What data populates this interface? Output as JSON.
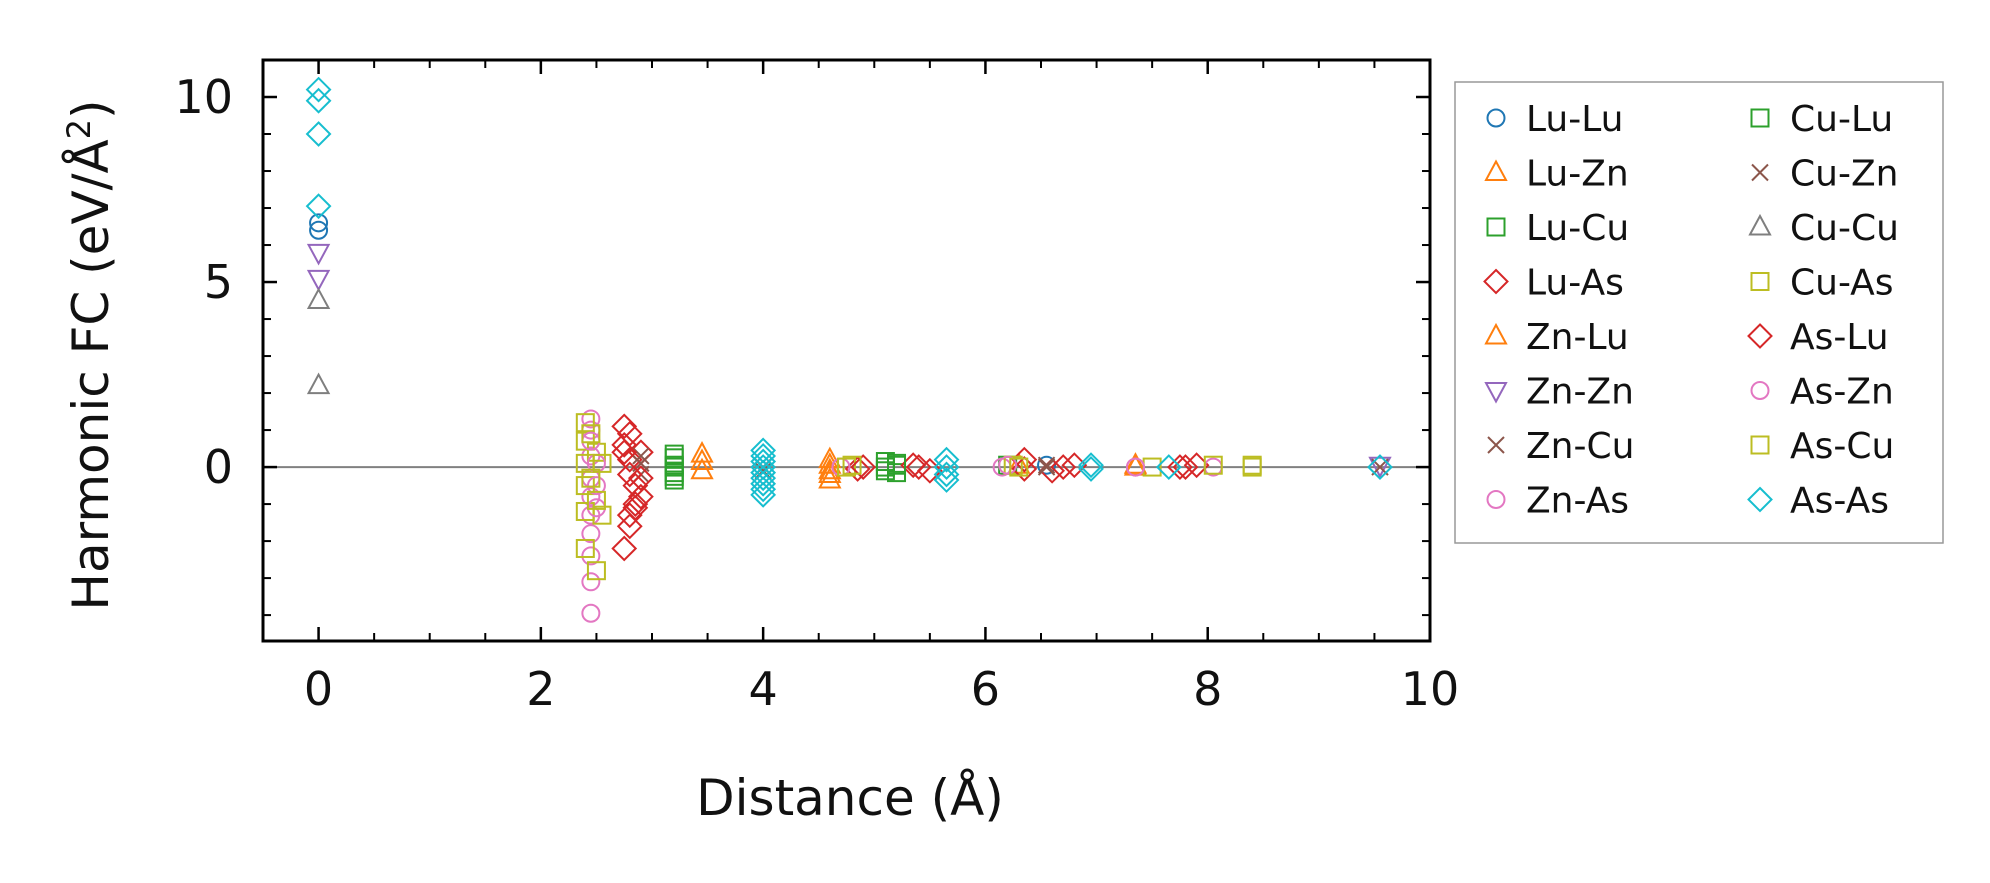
{
  "chart_data": {
    "type": "scatter",
    "xlabel": "Distance (Å)",
    "ylabel": "Harmonic FC (eV/Å²)",
    "ylabel_base": "Harmonic FC (eV/Å",
    "ylabel_sup": "2",
    "ylabel_close": ")",
    "xlim": [
      -0.5,
      10
    ],
    "ylim": [
      -4.7,
      11
    ],
    "xticks": [
      0,
      2,
      4,
      6,
      8,
      10
    ],
    "xtick_labels": [
      "0",
      "2",
      "4",
      "6",
      "8",
      "10"
    ],
    "yticks": [
      0,
      5,
      10
    ],
    "ytick_labels": [
      "0",
      "5",
      "10"
    ],
    "hline": 0,
    "legend_position": "right, outside plot, two columns",
    "series": [
      {
        "name": "Lu-Lu",
        "marker": "circle",
        "color": "#1f77b4",
        "x": [
          0,
          0,
          6.55
        ],
        "y": [
          6.6,
          6.4,
          0.05
        ]
      },
      {
        "name": "Lu-Zn",
        "marker": "triangle-up",
        "color": "#ff7f0e",
        "x": [
          3.45,
          3.45,
          4.6,
          4.6,
          4.6,
          6.3,
          7.35
        ],
        "y": [
          0.35,
          -0.1,
          0.2,
          -0.1,
          -0.35,
          0.05,
          0.0
        ]
      },
      {
        "name": "Lu-Cu",
        "marker": "square",
        "color": "#2ca02c",
        "x": [
          3.2,
          3.2,
          3.2,
          3.2,
          5.1,
          5.1,
          5.2,
          5.2,
          6.2
        ],
        "y": [
          0.25,
          0.05,
          -0.15,
          -0.35,
          0.15,
          -0.1,
          0.1,
          -0.15,
          0.05
        ]
      },
      {
        "name": "Lu-As",
        "marker": "diamond",
        "color": "#d62728",
        "x": [
          2.75,
          2.75,
          2.8,
          2.8,
          2.85,
          2.85,
          2.9,
          2.9,
          2.75,
          2.8,
          4.85,
          5.35,
          5.5,
          6.35,
          6.6,
          6.8,
          7.75,
          7.9
        ],
        "y": [
          1.1,
          0.6,
          0.9,
          0.2,
          -0.5,
          -1.1,
          0.4,
          -0.8,
          -2.2,
          -1.6,
          -0.05,
          0.05,
          -0.1,
          0.2,
          -0.1,
          0.05,
          0.0,
          0.05
        ]
      },
      {
        "name": "Zn-Lu",
        "marker": "triangle-up",
        "color": "#ff7f0e",
        "x": [
          3.45,
          4.6,
          4.6,
          7.35
        ],
        "y": [
          0.15,
          0.05,
          -0.2,
          0.05
        ]
      },
      {
        "name": "Zn-Zn",
        "marker": "triangle-down",
        "color": "#9467bd",
        "x": [
          0,
          0,
          9.55
        ],
        "y": [
          5.8,
          5.1,
          0.05
        ]
      },
      {
        "name": "Zn-Cu",
        "marker": "x",
        "color": "#8c564b",
        "x": [
          2.9,
          2.9,
          4.0,
          6.55,
          9.55
        ],
        "y": [
          0.1,
          -0.2,
          0.0,
          0.05,
          0.0
        ]
      },
      {
        "name": "Zn-As",
        "marker": "circle",
        "color": "#e377c2",
        "x": [
          2.45,
          2.45,
          2.45,
          2.45,
          2.45,
          2.45,
          2.45,
          2.45,
          2.45,
          2.45,
          4.7,
          6.15,
          7.35,
          8.05
        ],
        "y": [
          1.3,
          1.0,
          0.3,
          -0.3,
          -0.8,
          -1.3,
          -1.8,
          -2.4,
          -3.1,
          -3.95,
          0.0,
          0.0,
          0.0,
          0.0
        ]
      },
      {
        "name": "Cu-Lu",
        "marker": "square",
        "color": "#2ca02c",
        "x": [
          3.2,
          3.2,
          3.2,
          5.1,
          5.2
        ],
        "y": [
          0.35,
          0.0,
          -0.25,
          0.0,
          0.05
        ]
      },
      {
        "name": "Cu-Zn",
        "marker": "x",
        "color": "#8c564b",
        "x": [
          2.9,
          4.0,
          6.55
        ],
        "y": [
          0.3,
          -0.1,
          0.0
        ]
      },
      {
        "name": "Cu-Cu",
        "marker": "triangle-up",
        "color": "#7f7f7f",
        "x": [
          0,
          0
        ],
        "y": [
          4.5,
          2.2
        ]
      },
      {
        "name": "Cu-As",
        "marker": "square",
        "color": "#bcbd22",
        "x": [
          2.4,
          2.4,
          2.4,
          2.4,
          2.4,
          2.4,
          2.5,
          2.5,
          2.55,
          4.75,
          6.25,
          7.5,
          8.05,
          8.4
        ],
        "y": [
          1.2,
          0.7,
          0.1,
          -0.5,
          -1.2,
          -2.2,
          -2.8,
          0.4,
          -1.3,
          0.0,
          0.05,
          0.0,
          0.05,
          0.0
        ]
      },
      {
        "name": "As-Lu",
        "marker": "diamond",
        "color": "#d62728",
        "x": [
          2.75,
          2.8,
          2.85,
          2.9,
          2.8,
          4.9,
          5.4,
          6.35,
          6.7,
          7.8
        ],
        "y": [
          0.4,
          -0.2,
          -1.0,
          -0.3,
          -1.3,
          0.0,
          0.0,
          -0.05,
          0.0,
          0.0
        ]
      },
      {
        "name": "As-Zn",
        "marker": "circle",
        "color": "#e377c2",
        "x": [
          2.45,
          2.5,
          2.5,
          2.5,
          6.2,
          7.35
        ],
        "y": [
          0.7,
          0.1,
          -0.5,
          -1.1,
          0.05,
          0.0
        ]
      },
      {
        "name": "As-Cu",
        "marker": "square",
        "color": "#bcbd22",
        "x": [
          2.45,
          2.45,
          2.5,
          2.55,
          4.8,
          6.3,
          8.4
        ],
        "y": [
          0.9,
          -0.3,
          -0.9,
          0.1,
          0.05,
          0.0,
          0.05
        ]
      },
      {
        "name": "As-As",
        "marker": "diamond",
        "color": "#17becf",
        "x": [
          0,
          0,
          0,
          0,
          4.0,
          4.0,
          4.0,
          4.0,
          4.0,
          4.0,
          4.0,
          4.0,
          4.0,
          5.65,
          5.65,
          5.65,
          5.65,
          6.95,
          6.95,
          7.65,
          9.55
        ],
        "y": [
          10.2,
          9.9,
          9.0,
          7.05,
          0.45,
          0.3,
          0.15,
          0.0,
          -0.15,
          -0.3,
          -0.45,
          -0.6,
          -0.75,
          0.2,
          0.0,
          -0.2,
          -0.35,
          0.05,
          -0.05,
          0.0,
          0.0
        ]
      }
    ]
  }
}
